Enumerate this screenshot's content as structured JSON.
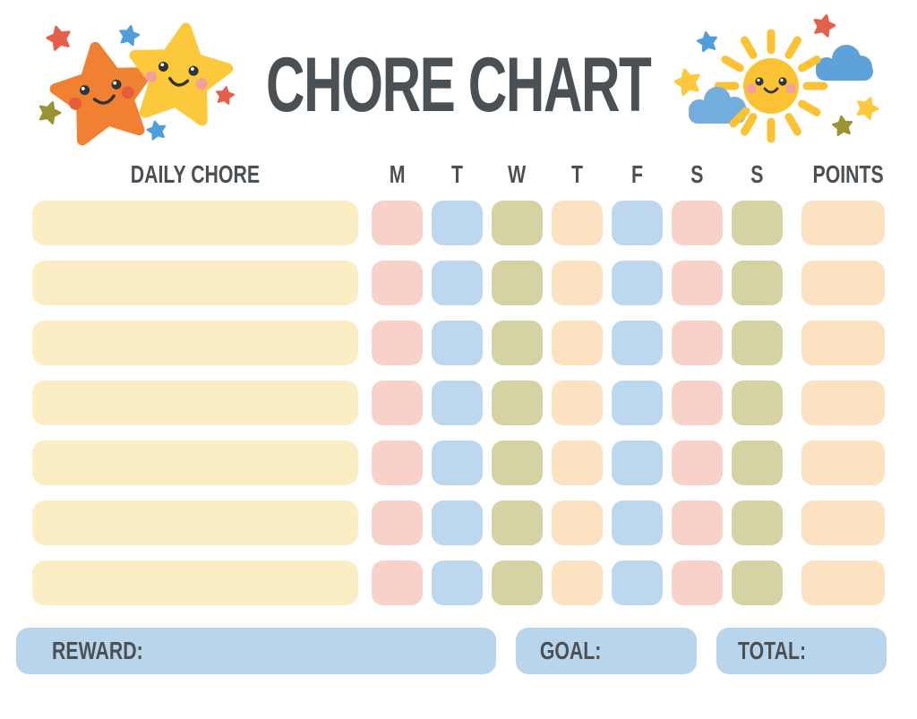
{
  "title": "CHORE CHART",
  "table": {
    "chore_column_header": "DAILY CHORE",
    "day_headers": [
      "M",
      "T",
      "W",
      "T",
      "F",
      "S",
      "S"
    ],
    "points_header": "POINTS",
    "rows": [
      {
        "chore": "",
        "day_colors": [
          "pink",
          "blue",
          "olive",
          "peach",
          "blue",
          "pink",
          "olive"
        ],
        "points_color": "peach"
      },
      {
        "chore": "",
        "day_colors": [
          "pink",
          "blue",
          "olive",
          "peach",
          "blue",
          "pink",
          "olive"
        ],
        "points_color": "peach"
      },
      {
        "chore": "",
        "day_colors": [
          "pink",
          "blue",
          "olive",
          "peach",
          "blue",
          "pink",
          "olive"
        ],
        "points_color": "peach"
      },
      {
        "chore": "",
        "day_colors": [
          "pink",
          "blue",
          "olive",
          "peach",
          "blue",
          "pink",
          "olive"
        ],
        "points_color": "peach"
      },
      {
        "chore": "",
        "day_colors": [
          "pink",
          "blue",
          "olive",
          "peach",
          "blue",
          "pink",
          "olive"
        ],
        "points_color": "peach"
      },
      {
        "chore": "",
        "day_colors": [
          "pink",
          "blue",
          "olive",
          "peach",
          "blue",
          "pink",
          "olive"
        ],
        "points_color": "peach"
      },
      {
        "chore": "",
        "day_colors": [
          "pink",
          "blue",
          "olive",
          "peach",
          "blue",
          "pink",
          "olive"
        ],
        "points_color": "peach"
      }
    ]
  },
  "footer": {
    "reward_label": "REWARD:",
    "goal_label": "GOAL:",
    "total_label": "TOTAL:"
  },
  "decorations": {
    "left": "two smiling stars with mini stars",
    "right": "smiling sun with clouds and mini stars"
  },
  "colors": {
    "text": "#4B5055",
    "chore_bar": "#FBEEC5",
    "pink": "#F8D2C9",
    "blue": "#BDD7EE",
    "olive": "#D5D2A4",
    "peach": "#FCE2C1",
    "footer_box": "#B9D5EC",
    "star_orange": "#F08133",
    "star_yellow": "#FCC93C",
    "sun_yellow": "#FBC334",
    "cloud_front": "#74AEDF",
    "cloud_back": "#5EA2DA",
    "mini_red": "#E4604A",
    "mini_blue": "#4E9EDD",
    "mini_olive": "#9A9332",
    "cheek_orange": "#E75C3A",
    "cheek_pink": "#F2A09A",
    "eye": "#30343A"
  }
}
